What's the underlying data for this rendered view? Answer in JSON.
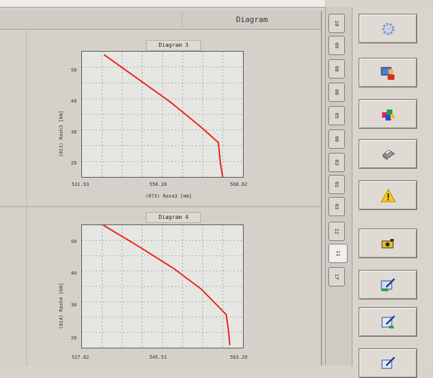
{
  "header": {
    "title": "Diagram"
  },
  "charts": [
    {
      "title": "Diagram  3",
      "ylabel": "(013) Rash3 [kN]",
      "xlabel": "(073) Rasa3 [mm]",
      "xticks": [
        "531.93",
        "550.28",
        "568.62"
      ],
      "yticks": [
        "50",
        "40",
        "30",
        "20"
      ]
    },
    {
      "title": "Diagram  4",
      "ylabel": "(014) Rash4 [kN]",
      "xticks": [
        "527.82",
        "545.51",
        "563.20"
      ],
      "yticks": [
        "50",
        "40",
        "30",
        "20"
      ]
    }
  ],
  "chart_data": [
    {
      "type": "line",
      "title": "Diagram  3",
      "xlabel": "(073) Rasa3 [mm]",
      "ylabel": "(013) Rash3 [kN]",
      "xlim": [
        531.93,
        568.62
      ],
      "ylim": [
        16,
        56
      ],
      "grid": true,
      "series": [
        {
          "x": [
            537.0,
            544.0,
            552.0,
            559.0,
            563.0,
            563.5,
            564.0
          ],
          "y": [
            55,
            48,
            40,
            32,
            27,
            20,
            16
          ],
          "color": "#e8221c"
        }
      ]
    },
    {
      "type": "line",
      "title": "Diagram  4",
      "xlim": [
        527.82,
        563.2
      ],
      "ylim": [
        17,
        65
      ],
      "grid": true,
      "series": [
        {
          "x": [
            532.5,
            540.0,
            548.0,
            554.0,
            559.5,
            560.0,
            560.3
          ],
          "y": [
            65,
            57,
            48,
            40,
            30,
            24,
            18
          ],
          "color": "#e8221c"
        }
      ]
    }
  ],
  "tabs": [
    "10",
    "09",
    "08",
    "06",
    "05",
    "06",
    "03",
    "02",
    "03",
    "12",
    "11",
    "17"
  ],
  "tools": [
    {
      "icon": "gear-icon"
    },
    {
      "icon": "user-screen-icon"
    },
    {
      "icon": "cubes-icon"
    },
    {
      "icon": "printer-icon"
    },
    {
      "icon": "warning-icon"
    },
    {
      "icon": "camera-icon"
    },
    {
      "icon": "edit-screen-icon"
    },
    {
      "icon": "edit-document-icon"
    },
    {
      "icon": "edit-tool-icon"
    }
  ],
  "colors": {
    "line": "#e8221c",
    "plot_bg": "#e6e6e3",
    "panel_bg": "#d5d1ca"
  }
}
